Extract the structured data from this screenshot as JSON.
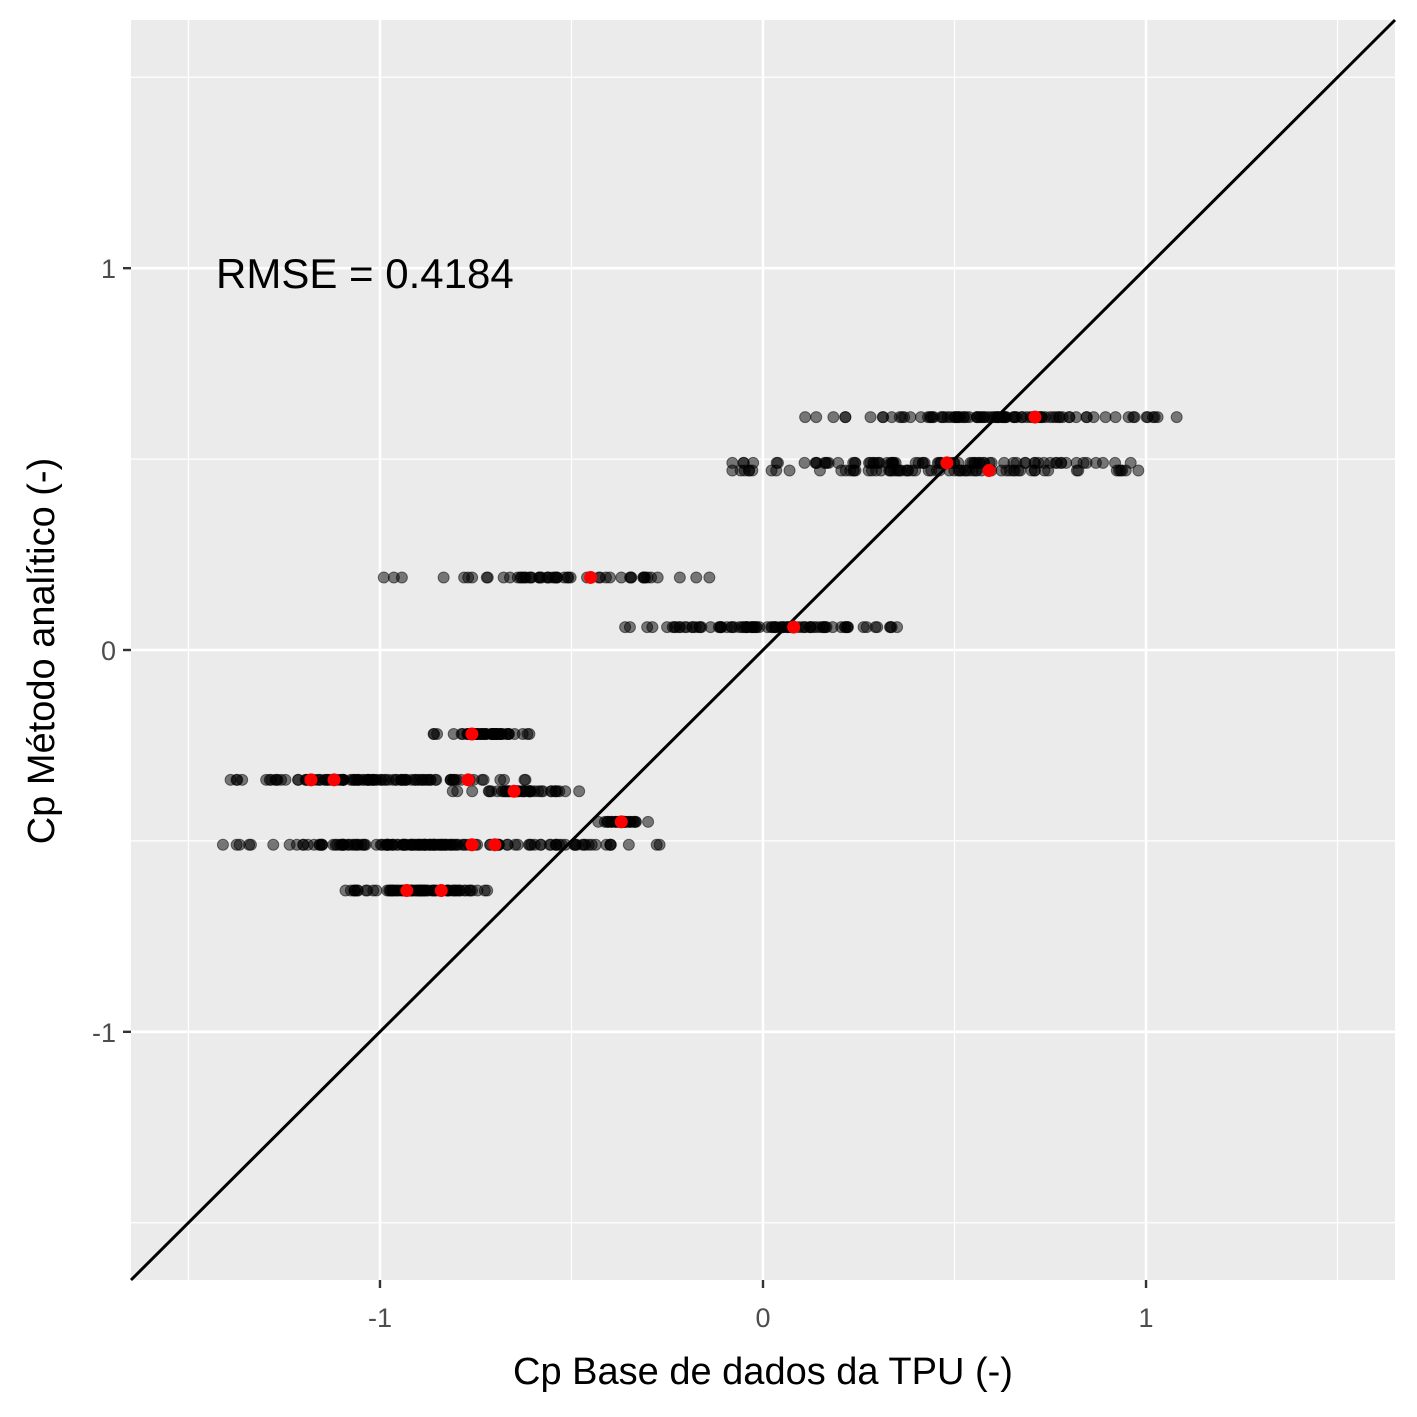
{
  "chart_data": {
    "type": "scatter",
    "title": "",
    "xlabel": "Cp Base de dados da TPU (-)",
    "ylabel": "Cp Método analítico (-)",
    "xlim": [
      -1.65,
      1.65
    ],
    "ylim": [
      -1.65,
      1.65
    ],
    "x_ticks": [
      -1,
      0,
      1
    ],
    "x_tick_labels": [
      "-1",
      "0",
      "1"
    ],
    "y_ticks": [
      -1,
      0,
      1
    ],
    "y_tick_labels": [
      "-1",
      "0",
      "1"
    ],
    "grid": true,
    "annotation": {
      "text": "RMSE = 0.4184",
      "x": -1.42,
      "y": 1.0
    },
    "reference_line": {
      "type": "identity",
      "color": "#000000"
    },
    "colors": {
      "panel": "#ebebeb",
      "grid": "#ffffff",
      "points": "#000000",
      "means": "#ff0000"
    },
    "point_bands": [
      {
        "y": 0.61,
        "x_min": 0.11,
        "x_max": 1.08,
        "count": 95
      },
      {
        "y": 0.49,
        "x_min": -0.08,
        "x_max": 0.96,
        "count": 80
      },
      {
        "y": 0.47,
        "x_min": -0.08,
        "x_max": 0.98,
        "count": 70
      },
      {
        "y": 0.19,
        "x_min": -0.99,
        "x_max": -0.14,
        "count": 55
      },
      {
        "y": 0.06,
        "x_min": -0.36,
        "x_max": 0.35,
        "count": 90
      },
      {
        "y": -0.22,
        "x_min": -0.86,
        "x_max": -0.61,
        "count": 55
      },
      {
        "y": -0.34,
        "x_min": -1.39,
        "x_max": -0.62,
        "count": 100
      },
      {
        "y": -0.37,
        "x_min": -0.81,
        "x_max": -0.48,
        "count": 40
      },
      {
        "y": -0.45,
        "x_min": -0.43,
        "x_max": -0.3,
        "count": 30
      },
      {
        "y": -0.51,
        "x_min": -1.41,
        "x_max": -0.27,
        "count": 150
      },
      {
        "y": -0.63,
        "x_min": -1.09,
        "x_max": -0.72,
        "count": 70
      }
    ],
    "mean_points": [
      {
        "x": 0.71,
        "y": 0.61
      },
      {
        "x": 0.48,
        "y": 0.49
      },
      {
        "x": 0.59,
        "y": 0.47
      },
      {
        "x": -0.45,
        "y": 0.19
      },
      {
        "x": 0.08,
        "y": 0.06
      },
      {
        "x": -0.76,
        "y": -0.22
      },
      {
        "x": -1.18,
        "y": -0.34
      },
      {
        "x": -1.12,
        "y": -0.34
      },
      {
        "x": -0.77,
        "y": -0.34
      },
      {
        "x": -0.65,
        "y": -0.37
      },
      {
        "x": -0.37,
        "y": -0.45
      },
      {
        "x": -0.76,
        "y": -0.51
      },
      {
        "x": -0.7,
        "y": -0.51
      },
      {
        "x": -0.93,
        "y": -0.63
      },
      {
        "x": -0.84,
        "y": -0.63
      }
    ]
  }
}
